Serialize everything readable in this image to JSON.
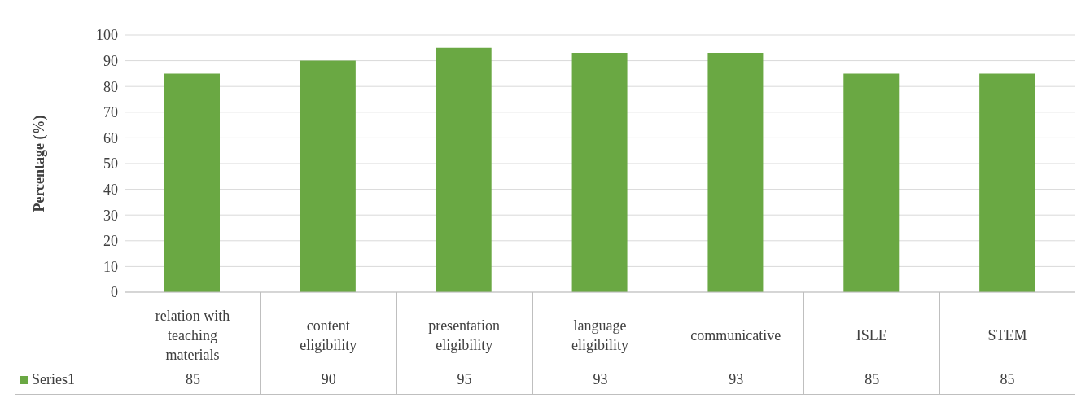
{
  "chart_data": {
    "type": "bar",
    "ylabel": "Percentage (%)",
    "categories": [
      "relation with teaching materials",
      "content eligibility",
      "presentation eligibility",
      "language eligibility",
      "communicative",
      "ISLE",
      "STEM"
    ],
    "series": [
      {
        "name": "Series1",
        "color": "#6aa843",
        "values": [
          85,
          90,
          95,
          93,
          93,
          85,
          85
        ]
      }
    ],
    "ylim": [
      0,
      100
    ],
    "yticks": [
      0,
      10,
      20,
      30,
      40,
      50,
      60,
      70,
      80,
      90,
      100
    ],
    "grid": "y",
    "legend": "bottom",
    "data_labels": true
  }
}
